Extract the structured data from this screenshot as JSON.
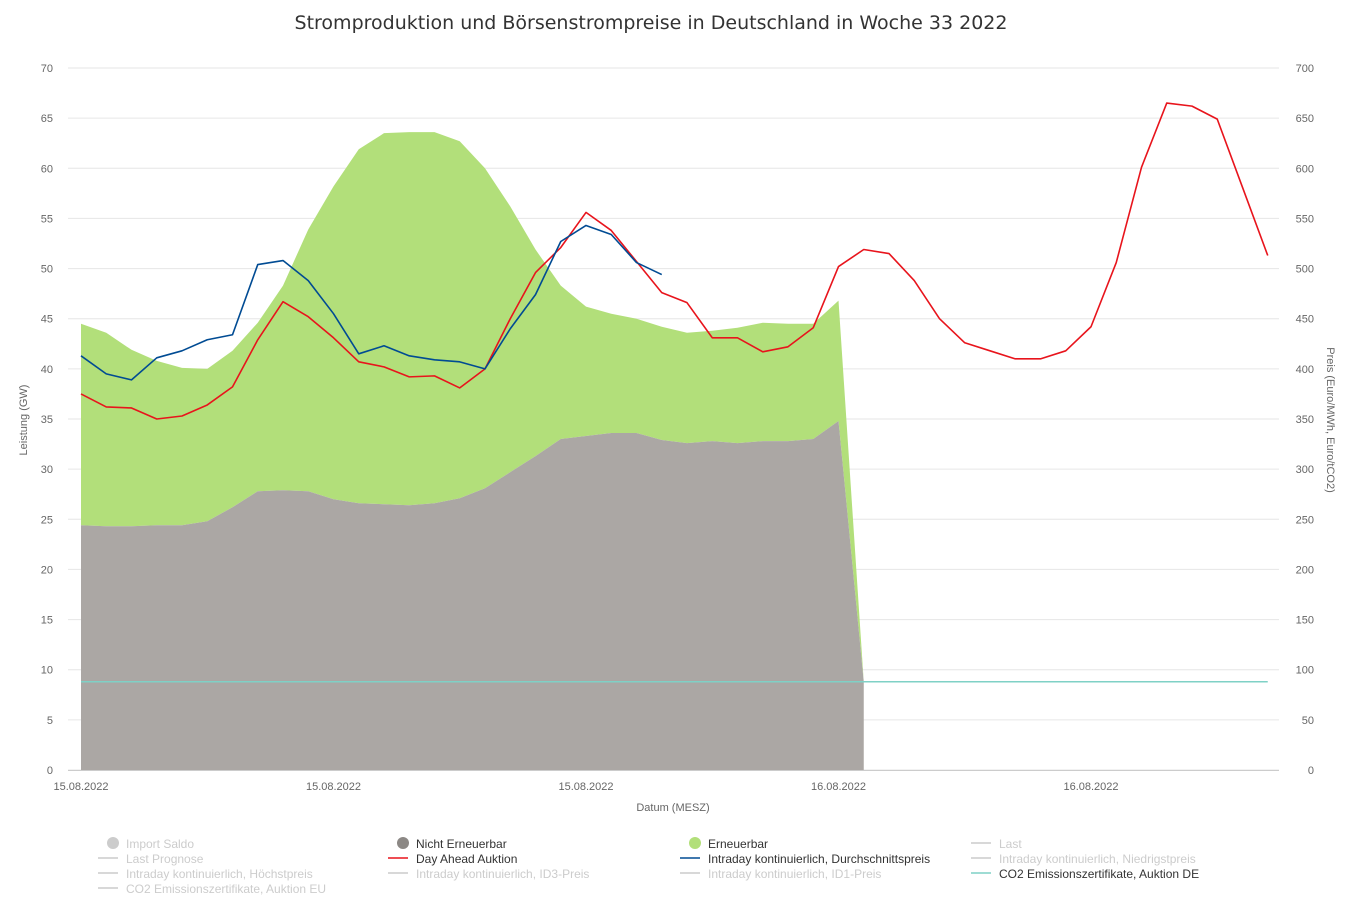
{
  "chart_data": {
    "type": "area",
    "title": "Stromproduktion und Börsenstrompreise in Deutschland in Woche 33 2022",
    "xlabel": "Datum (MESZ)",
    "ylabel": "Leistung (GW)",
    "ylabel_right": "Preis (Euro/MWh, Euro/tCO2)",
    "ylim": [
      0,
      70
    ],
    "ylim_right": [
      0,
      700
    ],
    "grid": true,
    "legend_position": "bottom",
    "x_tick_labels": [
      "15.08.2022",
      "15.08.2022",
      "15.08.2022",
      "16.08.2022",
      "16.08.2022"
    ],
    "y_ticks_left": [
      0,
      5,
      10,
      15,
      20,
      25,
      30,
      35,
      40,
      45,
      50,
      55,
      60,
      65,
      70
    ],
    "y_ticks_right": [
      0,
      50,
      100,
      150,
      200,
      250,
      300,
      350,
      400,
      450,
      500,
      550,
      600,
      650,
      700
    ],
    "x_hours": [
      0,
      1,
      2,
      3,
      4,
      5,
      6,
      7,
      8,
      9,
      10,
      11,
      12,
      13,
      14,
      15,
      16,
      17,
      18,
      19,
      20,
      21,
      22,
      23,
      24,
      25,
      26,
      27,
      28,
      29,
      30,
      31,
      32,
      33,
      34,
      35,
      36,
      37,
      38,
      39,
      40,
      41,
      42,
      43,
      44,
      45,
      46,
      47
    ],
    "series": [
      {
        "name": "Nicht Erneuerbar",
        "type": "area",
        "axis": "left",
        "color": "#aba7a4",
        "values": [
          24.4,
          24.3,
          24.3,
          24.4,
          24.4,
          24.8,
          26.2,
          27.8,
          27.9,
          27.8,
          27.0,
          26.6,
          26.5,
          26.4,
          26.6,
          27.1,
          28.1,
          29.7,
          31.3,
          33.0,
          33.3,
          33.6,
          33.6,
          32.9,
          32.6,
          32.8,
          32.6,
          32.8,
          32.8,
          33.0,
          34.8,
          8.8
        ]
      },
      {
        "name": "Erneuerbar",
        "type": "area",
        "axis": "left",
        "stacked": true,
        "color": "#b2df7a",
        "values": [
          20.1,
          19.3,
          17.6,
          16.4,
          15.7,
          15.2,
          15.6,
          16.8,
          20.4,
          26.1,
          31.2,
          35.3,
          37.0,
          37.2,
          37.0,
          35.6,
          31.9,
          26.5,
          20.6,
          15.3,
          12.9,
          11.9,
          11.4,
          11.3,
          11.0,
          11.0,
          11.5,
          11.8,
          11.7,
          11.5,
          12.0,
          0.0
        ]
      },
      {
        "name": "Day Ahead Auktion",
        "type": "line",
        "axis": "right",
        "color": "#e8141c",
        "values": [
          375,
          362,
          361,
          350,
          353,
          364,
          382,
          429,
          467,
          452,
          431,
          407,
          402,
          392,
          393,
          381,
          400,
          450,
          496,
          521,
          556,
          538,
          507,
          476,
          466,
          431,
          431,
          417,
          422,
          441,
          502,
          519,
          515,
          488,
          450,
          426,
          418,
          410,
          410,
          418,
          442,
          506,
          601,
          665,
          662,
          649,
          581,
          513
        ]
      },
      {
        "name": "Intraday kontinuierlich, Durchschnittspreis",
        "type": "line",
        "axis": "right",
        "color": "#004b93",
        "values": [
          413,
          395,
          389,
          411,
          418,
          429,
          434,
          504,
          508,
          488,
          455,
          415,
          423,
          413,
          409,
          407,
          400,
          440,
          474,
          527,
          543,
          534,
          506,
          494
        ]
      },
      {
        "name": "CO2 Emissionszertifikate, Auktion DE",
        "type": "line",
        "axis": "right",
        "color": "#7fd1c6",
        "values": [
          88,
          88,
          88,
          88,
          88,
          88,
          88,
          88,
          88,
          88,
          88,
          88,
          88,
          88,
          88,
          88,
          88,
          88,
          88,
          88,
          88,
          88,
          88,
          88,
          88,
          88,
          88,
          88,
          88,
          88,
          88,
          88,
          88,
          88,
          88,
          88,
          88,
          88,
          88,
          88,
          88,
          88,
          88,
          88,
          88,
          88,
          88,
          88
        ]
      }
    ],
    "legend": [
      {
        "name": "Import Saldo",
        "symbol": "circle",
        "color": "#cccccc",
        "active": false
      },
      {
        "name": "Nicht Erneuerbar",
        "symbol": "circle",
        "color": "#8c8885",
        "active": true
      },
      {
        "name": "Erneuerbar",
        "symbol": "circle",
        "color": "#b2df7a",
        "active": true
      },
      {
        "name": "Last",
        "symbol": "line",
        "color": "#cccccc",
        "active": false
      },
      {
        "name": "Last Prognose",
        "symbol": "line",
        "color": "#cccccc",
        "active": false
      },
      {
        "name": "Day Ahead Auktion",
        "symbol": "line",
        "color": "#e8141c",
        "active": true
      },
      {
        "name": "Intraday kontinuierlich, Durchschnittspreis",
        "symbol": "line",
        "color": "#004b93",
        "active": true
      },
      {
        "name": "Intraday kontinuierlich, Niedrigstpreis",
        "symbol": "line",
        "color": "#cccccc",
        "active": false
      },
      {
        "name": "Intraday kontinuierlich, Höchstpreis",
        "symbol": "line",
        "color": "#cccccc",
        "active": false
      },
      {
        "name": "Intraday kontinuierlich, ID3-Preis",
        "symbol": "line",
        "color": "#cccccc",
        "active": false
      },
      {
        "name": "Intraday kontinuierlich, ID1-Preis",
        "symbol": "line",
        "color": "#cccccc",
        "active": false
      },
      {
        "name": "CO2 Emissionszertifikate, Auktion DE",
        "symbol": "line",
        "color": "#7fd1c6",
        "active": true
      },
      {
        "name": "CO2 Emissionszertifikate, Auktion EU",
        "symbol": "line",
        "color": "#cccccc",
        "active": false
      }
    ]
  },
  "colors": {
    "grid": "#e6e6e6",
    "axis_text": "#666666",
    "title": "#333333",
    "legend_active_text": "#333333",
    "legend_inactive_text": "#cccccc"
  }
}
